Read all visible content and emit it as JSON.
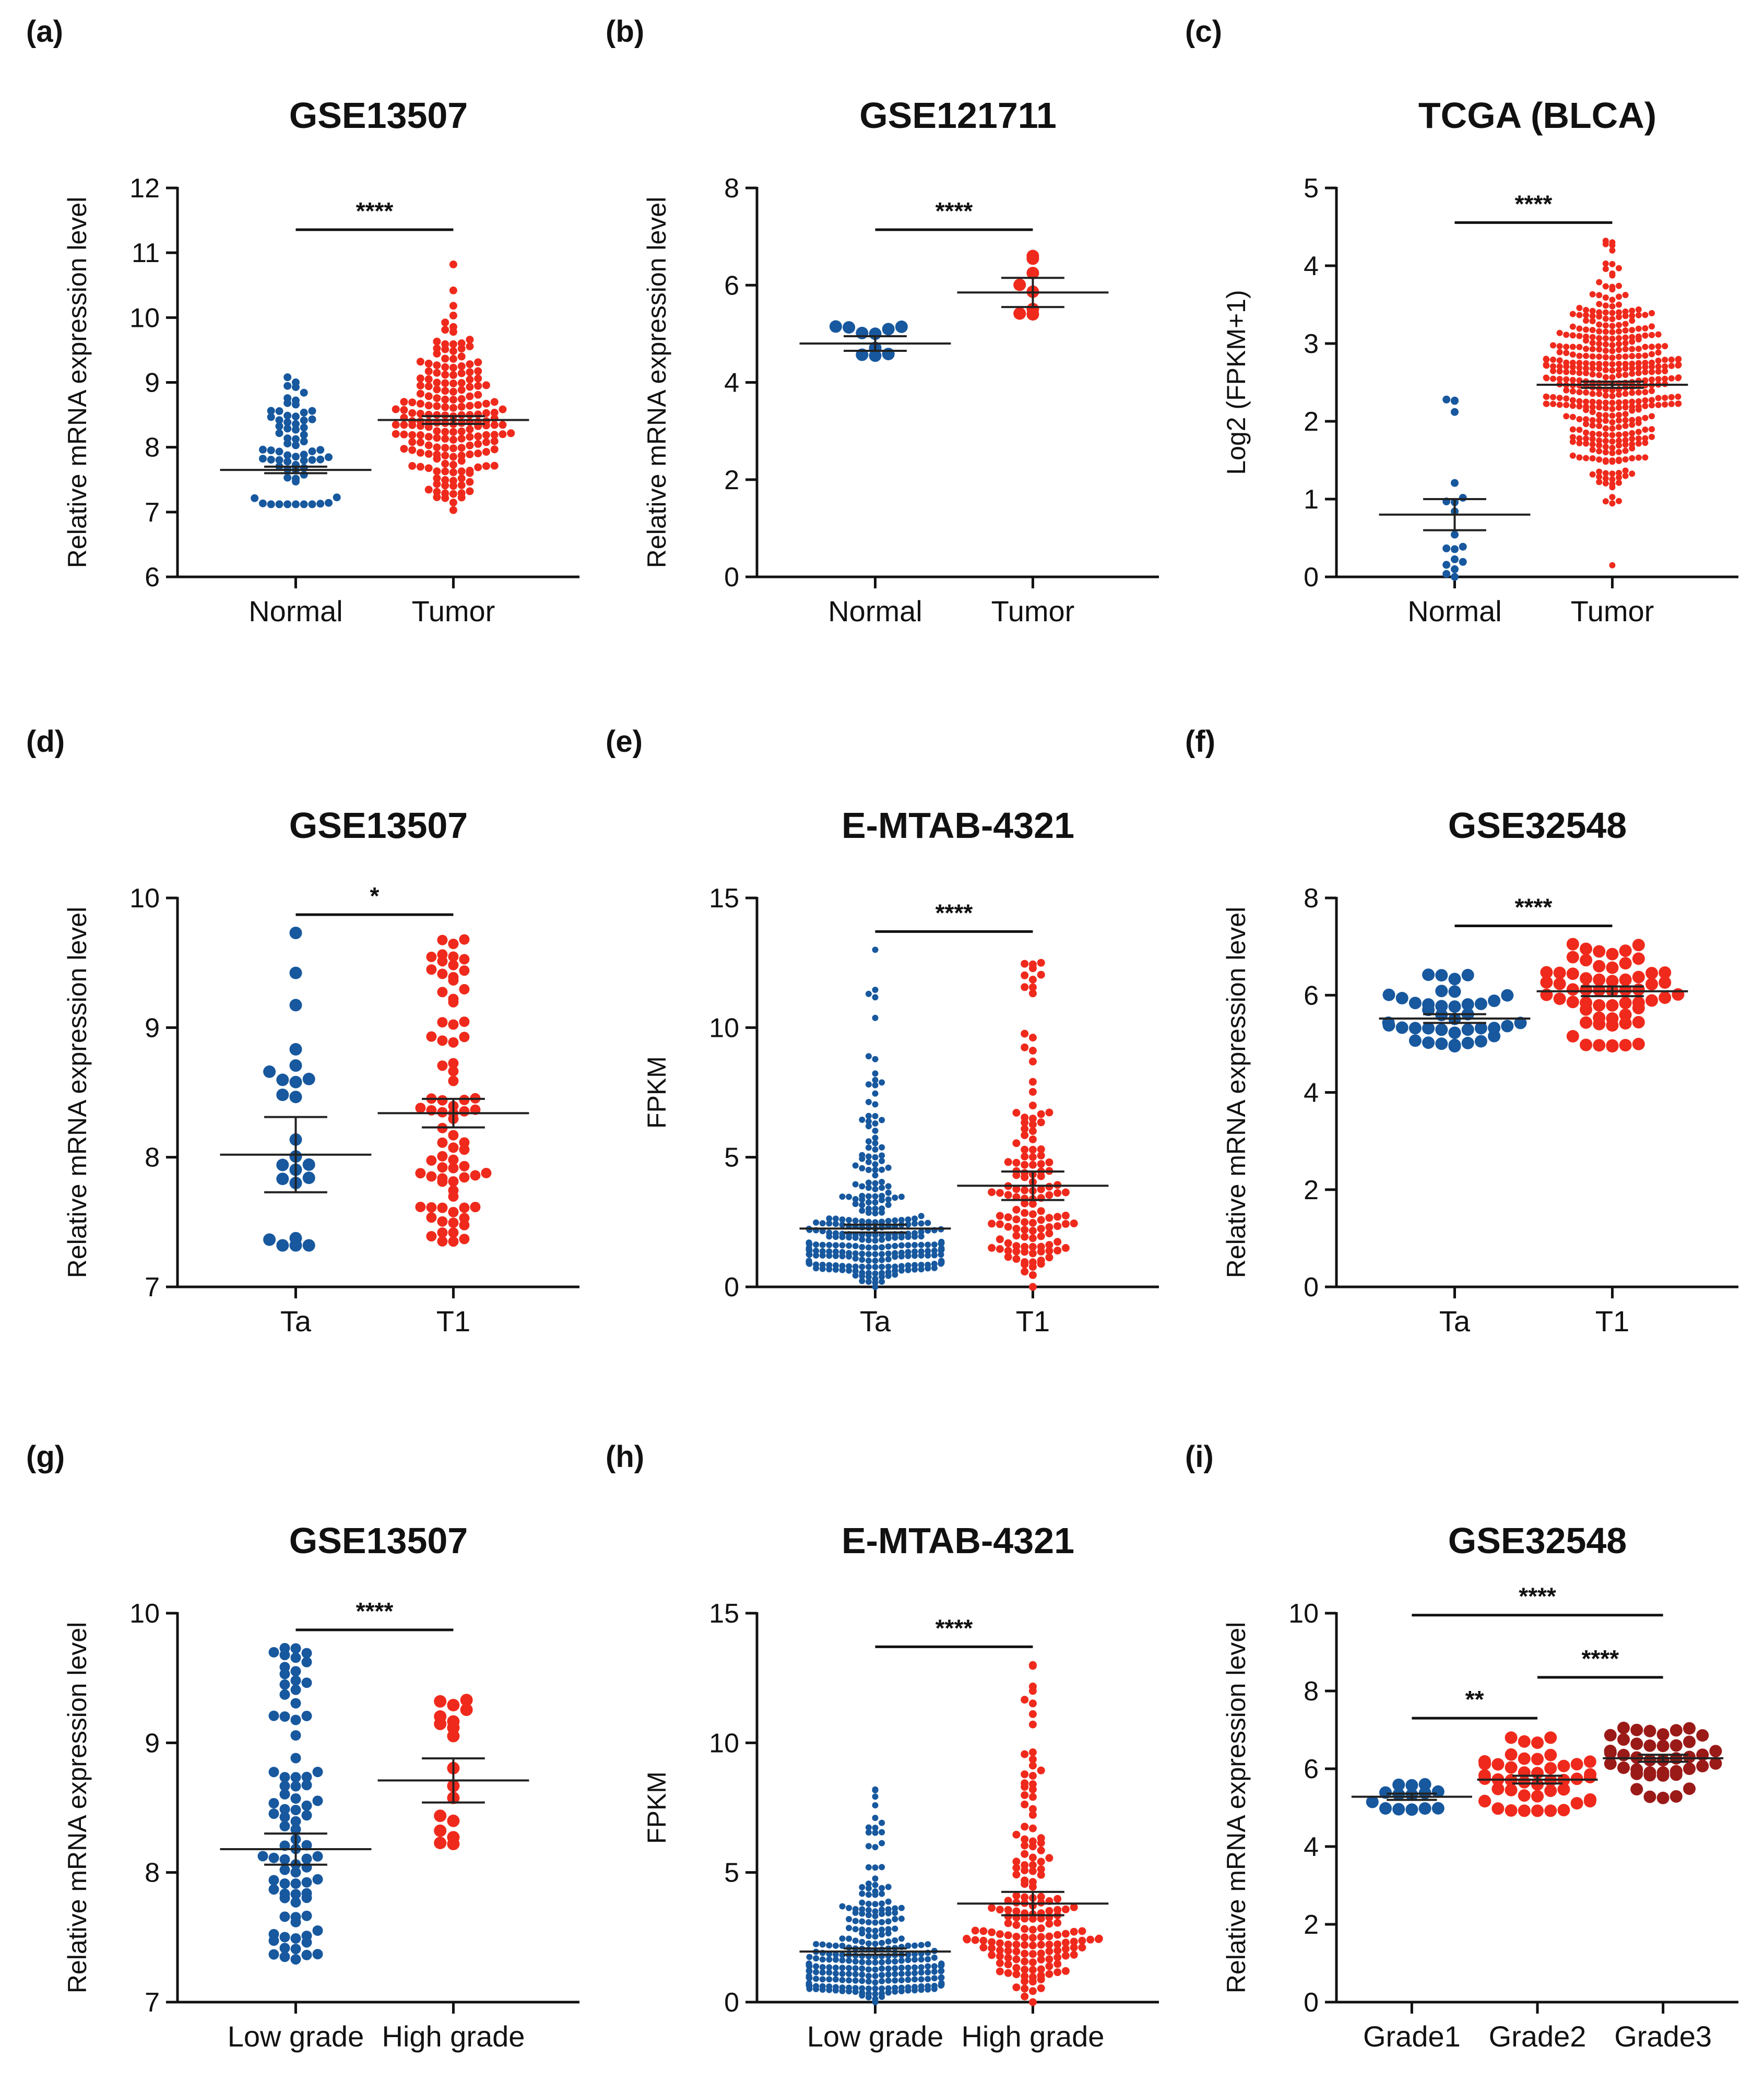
{
  "figure": {
    "colors": {
      "normal": "#17589e",
      "tumor": "#ef2a1c",
      "grade3": "#9a1a18",
      "axis": "#111111"
    }
  },
  "chart_data": [
    {
      "type": "scatter",
      "panel_label": "(a)",
      "title": "GSE13507",
      "ylabel": "Relative mRNA expression level",
      "ylim": [
        6,
        12
      ],
      "yticks": [
        6,
        7,
        8,
        9,
        10,
        11,
        12
      ],
      "categories": [
        "Normal",
        "Tumor"
      ],
      "groups": [
        {
          "name": "Normal",
          "n": 68,
          "mean": 7.65,
          "sem": 0.05,
          "min": 7.12,
          "max": 9.08,
          "color": "#17589e"
        },
        {
          "name": "Tumor",
          "n": 188,
          "mean": 8.42,
          "sem": 0.06,
          "min": 7.03,
          "max": 10.82,
          "color": "#ef2a1c"
        }
      ],
      "comparisons": [
        {
          "between": [
            0,
            1
          ],
          "label": "****"
        }
      ]
    },
    {
      "type": "scatter",
      "panel_label": "(b)",
      "title": "GSE121711",
      "ylabel": "Relative mRNA expression level",
      "ylim": [
        0,
        8
      ],
      "yticks": [
        0,
        2,
        4,
        6,
        8
      ],
      "categories": [
        "Normal",
        "Tumor"
      ],
      "groups": [
        {
          "name": "Normal",
          "n": 10,
          "mean": 4.8,
          "sem": 0.15,
          "min": 4.55,
          "max": 5.15,
          "color": "#17589e"
        },
        {
          "name": "Tumor",
          "n": 8,
          "mean": 5.85,
          "sem": 0.3,
          "min": 5.4,
          "max": 6.6,
          "color": "#ef2a1c"
        }
      ],
      "comparisons": [
        {
          "between": [
            0,
            1
          ],
          "label": "****"
        }
      ]
    },
    {
      "type": "scatter",
      "panel_label": "(c)",
      "title": "TCGA (BLCA)",
      "ylabel": "Log2 (FPKM+1)",
      "ylim": [
        0,
        5
      ],
      "yticks": [
        0,
        1,
        2,
        3,
        4,
        5
      ],
      "categories": [
        "Normal",
        "Tumor"
      ],
      "groups": [
        {
          "name": "Normal",
          "n": 19,
          "mean": 0.8,
          "sem": 0.2,
          "min": 0.0,
          "max": 2.28,
          "color": "#17589e"
        },
        {
          "name": "Tumor",
          "n": 411,
          "mean": 2.47,
          "sem": 0.04,
          "min": 0.15,
          "max": 4.32,
          "color": "#ef2a1c"
        }
      ],
      "comparisons": [
        {
          "between": [
            0,
            1
          ],
          "label": "****"
        }
      ]
    },
    {
      "type": "scatter",
      "panel_label": "(d)",
      "title": "GSE13507",
      "ylabel": "Relative mRNA expression level",
      "ylim": [
        7,
        10
      ],
      "yticks": [
        7,
        8,
        9,
        10
      ],
      "categories": [
        "Ta",
        "T1"
      ],
      "groups": [
        {
          "name": "Ta",
          "n": 24,
          "mean": 8.02,
          "sem": 0.29,
          "min": 7.32,
          "max": 9.73,
          "color": "#17589e"
        },
        {
          "name": "T1",
          "n": 80,
          "mean": 8.34,
          "sem": 0.11,
          "min": 7.35,
          "max": 9.68,
          "color": "#ef2a1c"
        }
      ],
      "comparisons": [
        {
          "between": [
            0,
            1
          ],
          "label": "*"
        }
      ]
    },
    {
      "type": "scatter",
      "panel_label": "(e)",
      "title": "E-MTAB-4321",
      "ylabel": "FPKM",
      "ylim": [
        0,
        15
      ],
      "yticks": [
        0,
        5,
        10,
        15
      ],
      "categories": [
        "Ta",
        "T1"
      ],
      "groups": [
        {
          "name": "Ta",
          "n": 300,
          "mean": 2.25,
          "sem": 0.15,
          "min": 0.0,
          "max": 13.0,
          "color": "#17589e"
        },
        {
          "name": "T1",
          "n": 130,
          "mean": 3.9,
          "sem": 0.55,
          "min": 0.0,
          "max": 12.5,
          "color": "#ef2a1c"
        }
      ],
      "comparisons": [
        {
          "between": [
            0,
            1
          ],
          "label": "****"
        }
      ]
    },
    {
      "type": "scatter",
      "panel_label": "(f)",
      "title": "GSE32548",
      "ylabel": "Relative mRNA expression level",
      "ylim": [
        0,
        8
      ],
      "yticks": [
        0,
        2,
        4,
        6,
        8
      ],
      "categories": [
        "Ta",
        "T1"
      ],
      "groups": [
        {
          "name": "Ta",
          "n": 40,
          "mean": 5.52,
          "sem": 0.09,
          "min": 4.95,
          "max": 6.42,
          "color": "#17589e"
        },
        {
          "name": "T1",
          "n": 60,
          "mean": 6.08,
          "sem": 0.1,
          "min": 4.95,
          "max": 7.05,
          "color": "#ef2a1c"
        }
      ],
      "comparisons": [
        {
          "between": [
            0,
            1
          ],
          "label": "****"
        }
      ]
    },
    {
      "type": "scatter",
      "panel_label": "(g)",
      "title": "GSE13507",
      "ylabel": "Relative mRNA expression level",
      "ylim": [
        7,
        10
      ],
      "yticks": [
        7,
        8,
        9,
        10
      ],
      "categories": [
        "Low grade",
        "High grade"
      ],
      "groups": [
        {
          "name": "Low grade",
          "n": 86,
          "mean": 8.18,
          "sem": 0.12,
          "min": 7.33,
          "max": 9.73,
          "color": "#17589e"
        },
        {
          "name": "High grade",
          "n": 18,
          "mean": 8.71,
          "sem": 0.17,
          "min": 8.22,
          "max": 9.33,
          "color": "#ef2a1c"
        }
      ],
      "comparisons": [
        {
          "between": [
            0,
            1
          ],
          "label": "****"
        }
      ]
    },
    {
      "type": "scatter",
      "panel_label": "(h)",
      "title": "E-MTAB-4321",
      "ylabel": "FPKM",
      "ylim": [
        0,
        15
      ],
      "yticks": [
        0,
        5,
        10,
        15
      ],
      "categories": [
        "Low grade",
        "High grade"
      ],
      "groups": [
        {
          "name": "Low grade",
          "n": 290,
          "mean": 1.95,
          "sem": 0.12,
          "min": 0.0,
          "max": 8.2,
          "color": "#17589e"
        },
        {
          "name": "High grade",
          "n": 170,
          "mean": 3.8,
          "sem": 0.45,
          "min": 0.0,
          "max": 13.0,
          "color": "#ef2a1c"
        }
      ],
      "comparisons": [
        {
          "between": [
            0,
            1
          ],
          "label": "****"
        }
      ]
    },
    {
      "type": "scatter",
      "panel_label": "(i)",
      "title": "GSE32548",
      "ylabel": "Relative mRNA expression level",
      "ylim": [
        0,
        10
      ],
      "yticks": [
        0,
        2,
        4,
        6,
        8,
        10
      ],
      "categories": [
        "Grade1",
        "Grade2",
        "Grade3"
      ],
      "groups": [
        {
          "name": "Grade1",
          "n": 14,
          "mean": 5.28,
          "sem": 0.08,
          "min": 4.95,
          "max": 5.6,
          "color": "#17589e"
        },
        {
          "name": "Grade2",
          "n": 46,
          "mean": 5.72,
          "sem": 0.1,
          "min": 4.92,
          "max": 6.8,
          "color": "#ef2a1c"
        },
        {
          "name": "Grade3",
          "n": 42,
          "mean": 6.27,
          "sem": 0.09,
          "min": 5.25,
          "max": 7.05,
          "color": "#9a1a18"
        }
      ],
      "comparisons": [
        {
          "between": [
            0,
            1
          ],
          "label": "**"
        },
        {
          "between": [
            1,
            2
          ],
          "label": "****"
        },
        {
          "between": [
            0,
            2
          ],
          "label": "****"
        }
      ]
    }
  ]
}
